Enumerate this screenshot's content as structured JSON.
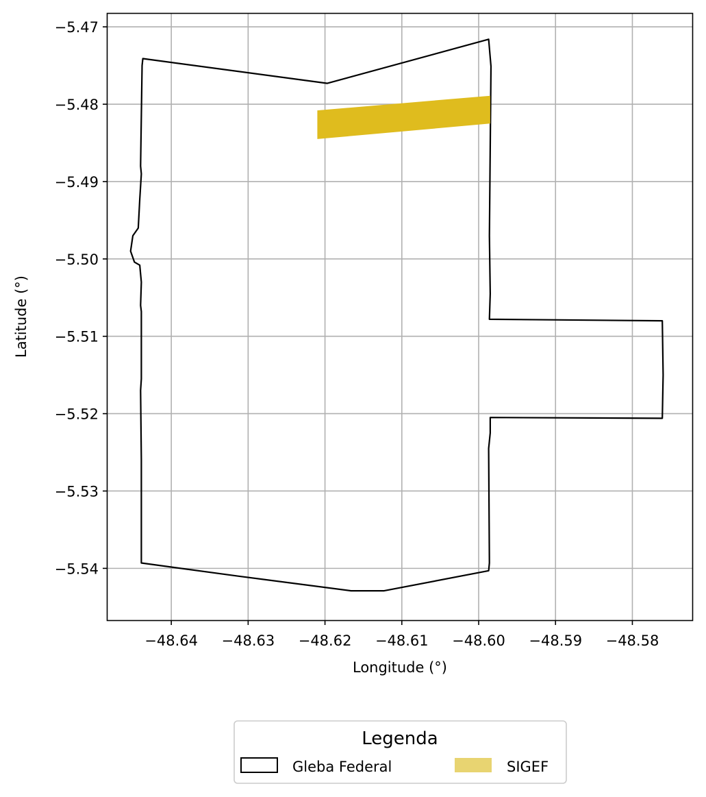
{
  "chart_data": {
    "type": "map",
    "title": "",
    "xlabel": "Longitude (°)",
    "ylabel": "Latitude (°)",
    "xlim": [
      -48.6483,
      -48.5722
    ],
    "ylim": [
      -5.5467,
      -5.4683
    ],
    "xticks": [
      -48.64,
      -48.63,
      -48.62,
      -48.61,
      -48.6,
      -48.59,
      -48.58
    ],
    "xtick_labels": [
      "−48.64",
      "−48.63",
      "−48.62",
      "−48.61",
      "−48.60",
      "−48.59",
      "−48.58"
    ],
    "yticks": [
      -5.47,
      -5.48,
      -5.49,
      -5.5,
      -5.51,
      -5.52,
      -5.53,
      -5.54
    ],
    "ytick_labels": [
      "−5.47",
      "−5.48",
      "−5.49",
      "−5.50",
      "−5.51",
      "−5.52",
      "−5.53",
      "−5.54"
    ],
    "grid": true,
    "legend": {
      "title": "Legenda",
      "placement": "bottom-center, below axes",
      "entries": [
        {
          "label": "Gleba Federal",
          "style": "outline"
        },
        {
          "label": "SIGEF",
          "style": "filled"
        }
      ]
    },
    "layers": [
      {
        "name": "Gleba Federal",
        "style": "outline",
        "stroke_color": "#000000",
        "coordinates": [
          [
            -48.6437,
            -5.4741
          ],
          [
            -48.6197,
            -5.4773
          ],
          [
            -48.5987,
            -5.4716
          ],
          [
            -48.5984,
            -5.4751
          ],
          [
            -48.5986,
            -5.497
          ],
          [
            -48.5985,
            -5.5045
          ],
          [
            -48.5986,
            -5.5078
          ],
          [
            -48.5761,
            -5.508
          ],
          [
            -48.576,
            -5.515
          ],
          [
            -48.5761,
            -5.5206
          ],
          [
            -48.5985,
            -5.5205
          ],
          [
            -48.5985,
            -5.5225
          ],
          [
            -48.5987,
            -5.5245
          ],
          [
            -48.5986,
            -5.5393
          ],
          [
            -48.5987,
            -5.5403
          ],
          [
            -48.6123,
            -5.5429
          ],
          [
            -48.6166,
            -5.5429
          ],
          [
            -48.6313,
            -5.541
          ],
          [
            -48.6439,
            -5.5393
          ],
          [
            -48.6439,
            -5.534
          ],
          [
            -48.6439,
            -5.526
          ],
          [
            -48.644,
            -5.517
          ],
          [
            -48.6439,
            -5.5155
          ],
          [
            -48.6439,
            -5.5068
          ],
          [
            -48.644,
            -5.506
          ],
          [
            -48.6439,
            -5.503
          ],
          [
            -48.6441,
            -5.5008
          ],
          [
            -48.6448,
            -5.5004
          ],
          [
            -48.6453,
            -5.499
          ],
          [
            -48.645,
            -5.497
          ],
          [
            -48.6443,
            -5.496
          ],
          [
            -48.6441,
            -5.4923
          ],
          [
            -48.6439,
            -5.489
          ],
          [
            -48.644,
            -5.488
          ],
          [
            -48.6438,
            -5.475
          ],
          [
            -48.6437,
            -5.4741
          ]
        ]
      },
      {
        "name": "SIGEF",
        "style": "filled",
        "fill_color": "#DFBC1E",
        "legend_color": "#E8D471",
        "coordinates": [
          [
            -48.621,
            -5.4808
          ],
          [
            -48.5985,
            -5.4789
          ],
          [
            -48.5985,
            -5.4825
          ],
          [
            -48.621,
            -5.4845
          ],
          [
            -48.621,
            -5.4808
          ]
        ]
      }
    ]
  }
}
